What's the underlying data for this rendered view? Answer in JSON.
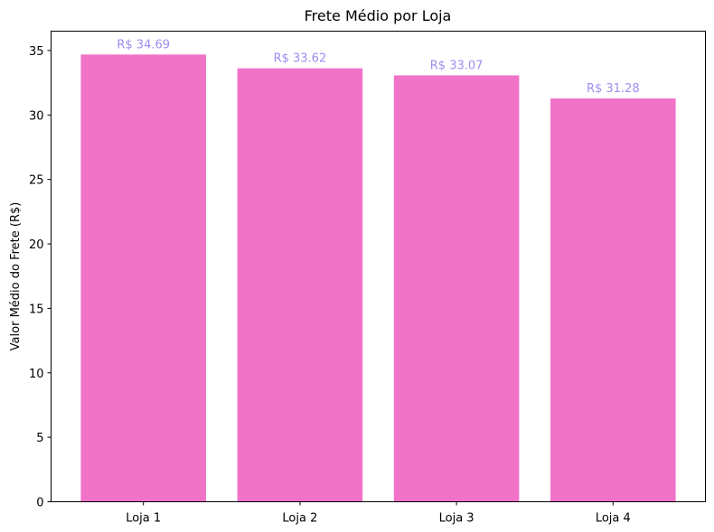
{
  "chart_data": {
    "type": "bar",
    "title": "Frete Médio por Loja",
    "xlabel": "",
    "ylabel": "Valor Médio do Frete (R$)",
    "categories": [
      "Loja 1",
      "Loja 2",
      "Loja 3",
      "Loja 4"
    ],
    "values": [
      34.69,
      33.62,
      33.07,
      31.28
    ],
    "data_labels": [
      "R$ 34.69",
      "R$ 33.62",
      "R$ 33.07",
      "R$ 31.28"
    ],
    "yticks": [
      0,
      5,
      10,
      15,
      20,
      25,
      30,
      35
    ],
    "ylim": [
      0,
      36.5
    ],
    "grid": false,
    "colors": {
      "bar": "#f073c8",
      "data_label": "#9b8ff0",
      "axis": "#000000"
    }
  }
}
